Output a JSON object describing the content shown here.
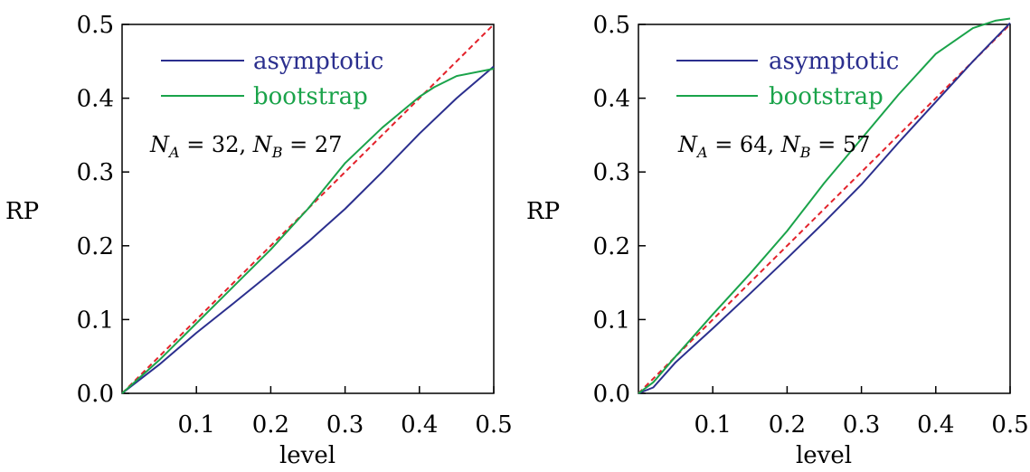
{
  "colors": {
    "asymptotic": "#2b2f8e",
    "bootstrap": "#1aa34a",
    "reference": "#e3222b"
  },
  "chart_data": [
    {
      "type": "line",
      "xlabel": "level",
      "ylabel": "RP",
      "xlim": [
        0,
        0.5
      ],
      "ylim": [
        0,
        0.5
      ],
      "xticks": [
        "0.1",
        "0.2",
        "0.3",
        "0.4",
        "0.5"
      ],
      "yticks": [
        "0.0",
        "0.1",
        "0.2",
        "0.3",
        "0.4",
        "0.5"
      ],
      "grid": false,
      "legend_position": "top-left",
      "annotation": {
        "lhs1": "N",
        "sub1": "A",
        "val1": " = 32, ",
        "lhs2": "N",
        "sub2": "B",
        "val2": " = 27"
      },
      "series": [
        {
          "name": "asymptotic",
          "color": "#2b2f8e",
          "x": [
            0,
            0.05,
            0.1,
            0.15,
            0.2,
            0.25,
            0.3,
            0.35,
            0.4,
            0.45,
            0.5
          ],
          "y": [
            0,
            0.039,
            0.082,
            0.122,
            0.163,
            0.205,
            0.25,
            0.3,
            0.352,
            0.4,
            0.443
          ]
        },
        {
          "name": "bootstrap",
          "color": "#1aa34a",
          "x": [
            0,
            0.05,
            0.1,
            0.15,
            0.2,
            0.25,
            0.3,
            0.35,
            0.4,
            0.42,
            0.45,
            0.5
          ],
          "y": [
            0,
            0.045,
            0.095,
            0.145,
            0.195,
            0.25,
            0.312,
            0.36,
            0.402,
            0.415,
            0.43,
            0.44
          ]
        },
        {
          "name": "",
          "color": "#e3222b",
          "style": "dashed",
          "x": [
            0,
            0.5
          ],
          "y": [
            0,
            0.5
          ]
        }
      ]
    },
    {
      "type": "line",
      "xlabel": "level",
      "ylabel": "RP",
      "xlim": [
        0,
        0.5
      ],
      "ylim": [
        0,
        0.5
      ],
      "xticks": [
        "0.1",
        "0.2",
        "0.3",
        "0.4",
        "0.5"
      ],
      "yticks": [
        "0.0",
        "0.1",
        "0.2",
        "0.3",
        "0.4",
        "0.5"
      ],
      "grid": false,
      "legend_position": "top-left",
      "annotation": {
        "lhs1": "N",
        "sub1": "A",
        "val1": " = 64, ",
        "lhs2": "N",
        "sub2": "B",
        "val2": " = 57"
      },
      "series": [
        {
          "name": "asymptotic",
          "color": "#2b2f8e",
          "x": [
            0,
            0.02,
            0.05,
            0.1,
            0.15,
            0.2,
            0.25,
            0.3,
            0.35,
            0.4,
            0.45,
            0.5
          ],
          "y": [
            0,
            0.008,
            0.042,
            0.088,
            0.135,
            0.183,
            0.232,
            0.283,
            0.34,
            0.395,
            0.45,
            0.502
          ]
        },
        {
          "name": "bootstrap",
          "color": "#1aa34a",
          "x": [
            0,
            0.02,
            0.05,
            0.1,
            0.15,
            0.2,
            0.25,
            0.3,
            0.35,
            0.4,
            0.45,
            0.48,
            0.5
          ],
          "y": [
            0,
            0.015,
            0.05,
            0.107,
            0.162,
            0.22,
            0.285,
            0.345,
            0.405,
            0.46,
            0.495,
            0.505,
            0.508
          ]
        },
        {
          "name": "",
          "color": "#e3222b",
          "style": "dashed",
          "x": [
            0,
            0.5
          ],
          "y": [
            0,
            0.5
          ]
        }
      ]
    }
  ]
}
